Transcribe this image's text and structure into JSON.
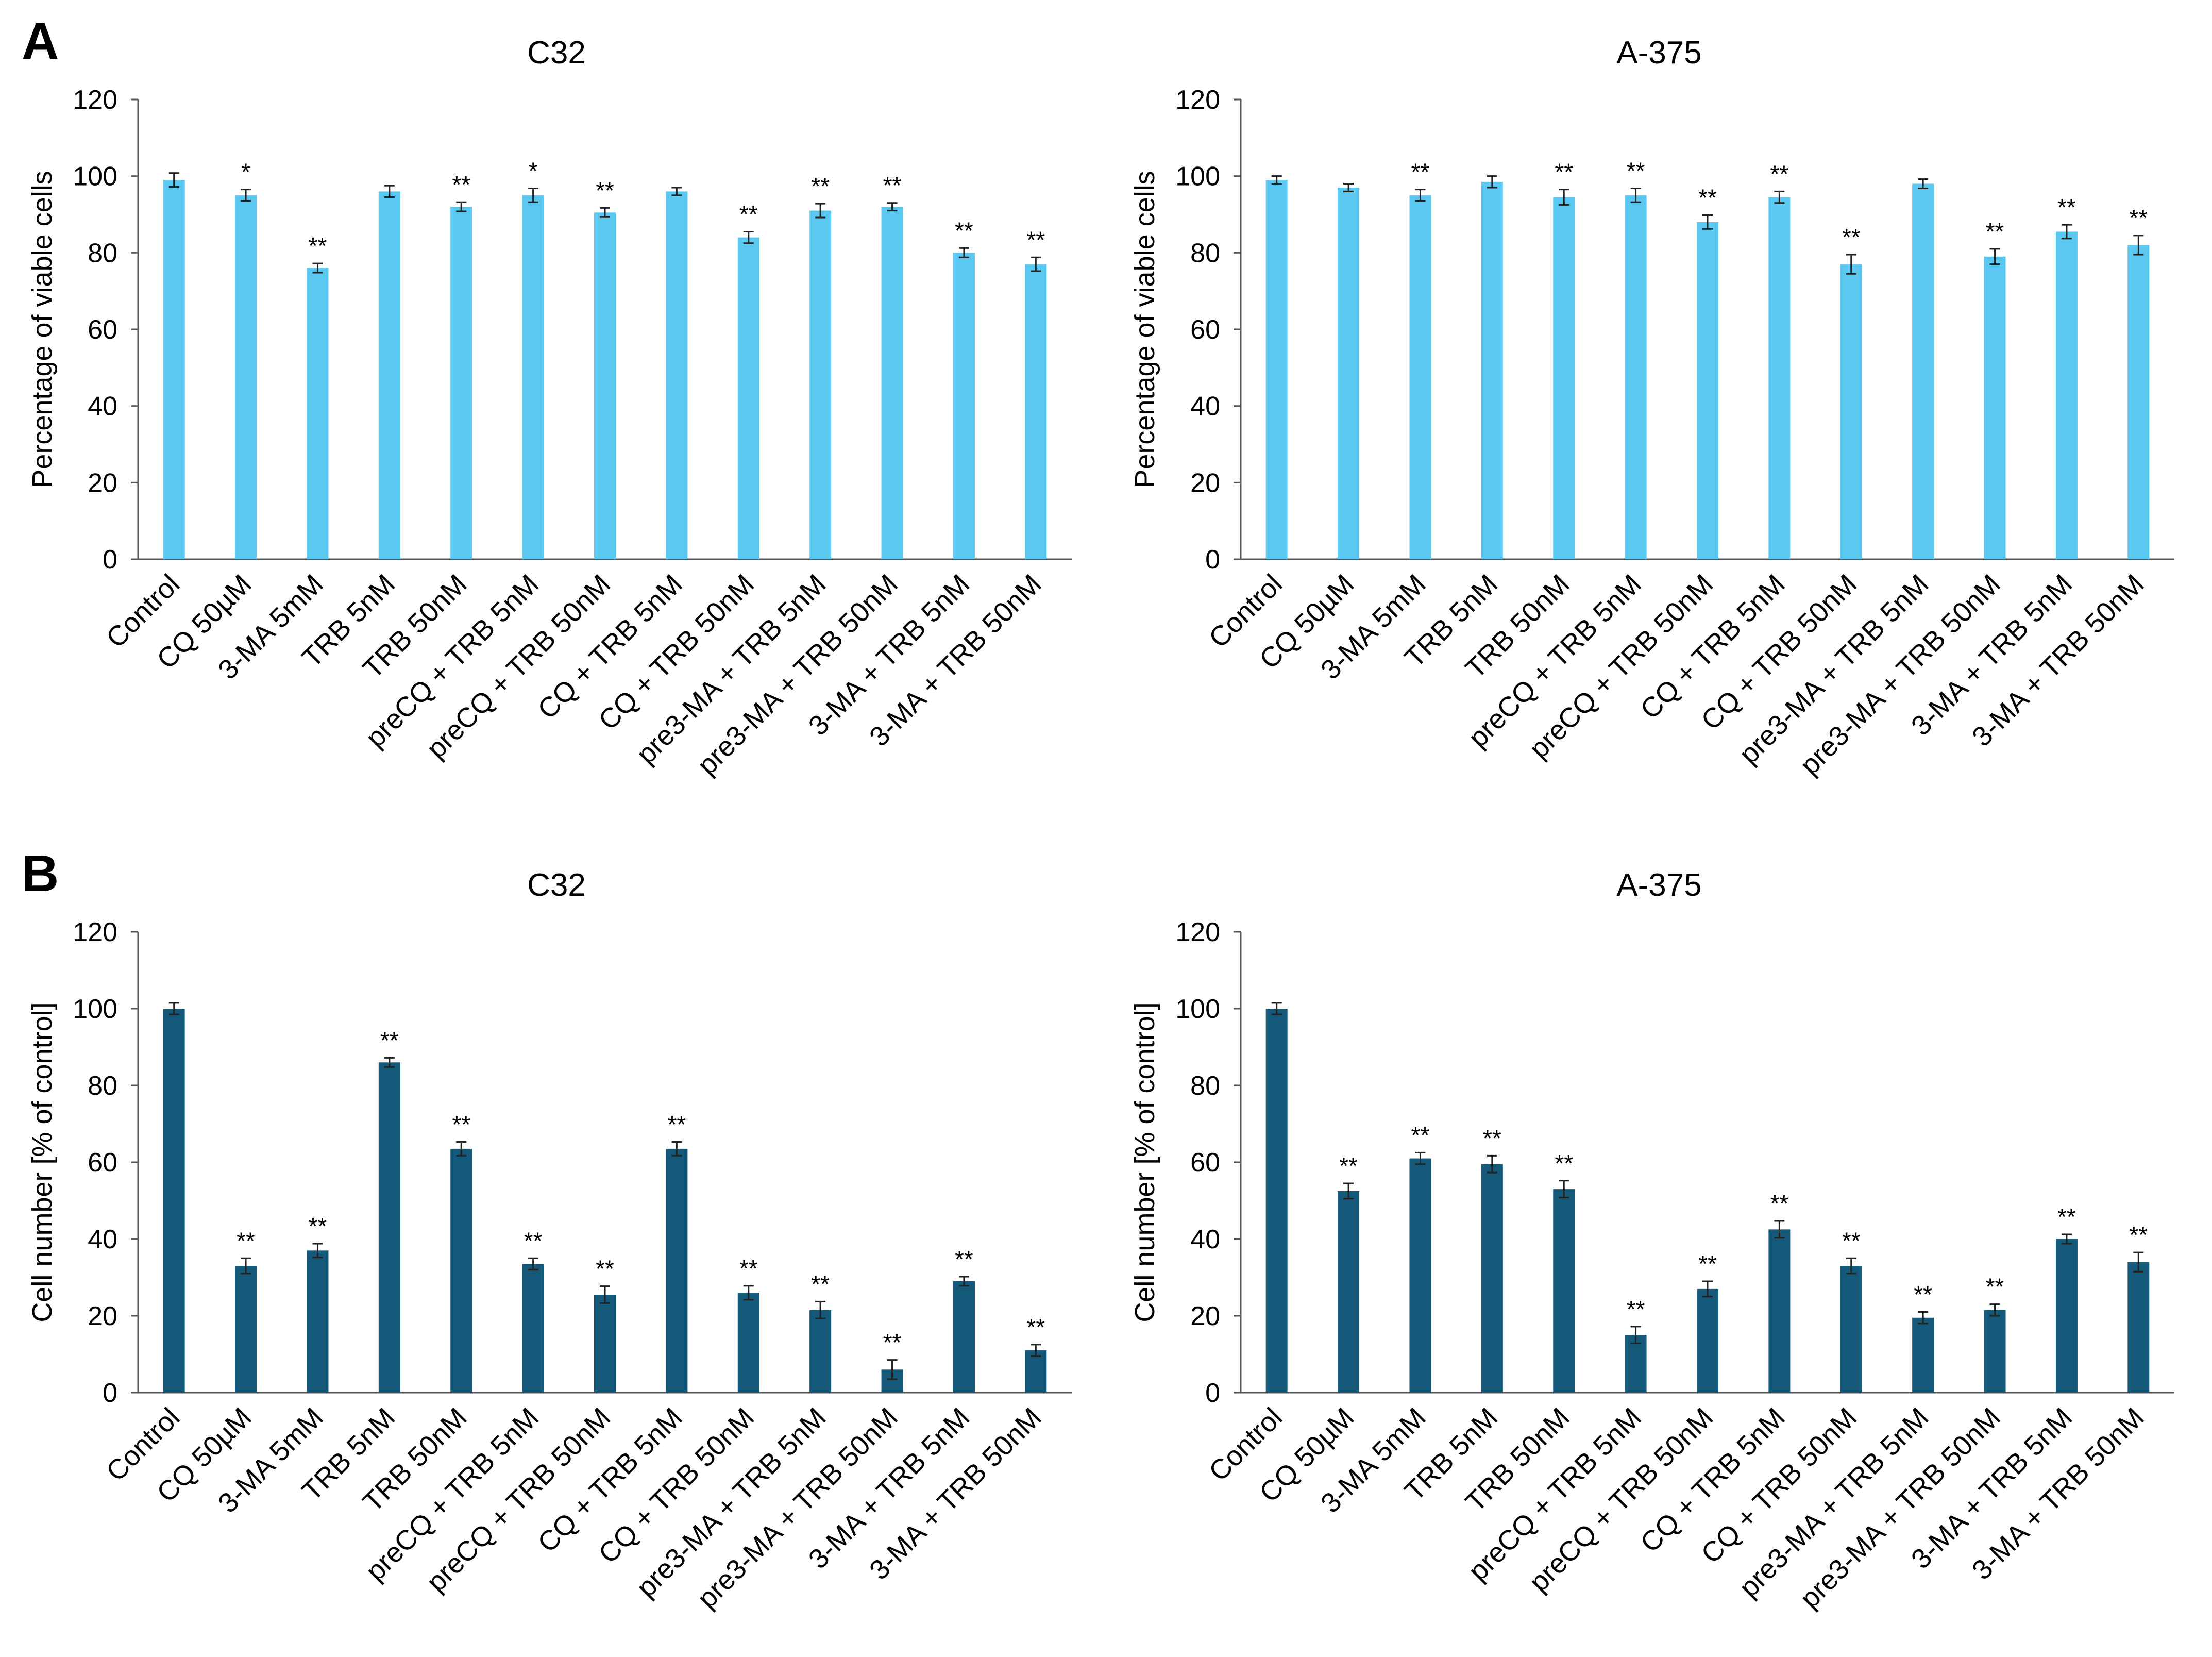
{
  "panels": [
    {
      "letter": "A"
    },
    {
      "letter": "B"
    }
  ],
  "chart_data": [
    {
      "type": "bar",
      "panel": "A",
      "title": "C32",
      "xlabel": "",
      "ylabel": "Percentage of viable cells",
      "ylim": [
        0,
        120
      ],
      "yticks": [
        0,
        20,
        40,
        60,
        80,
        100,
        120
      ],
      "color": "#5bc8f2",
      "categories": [
        "Control",
        "CQ 50µM",
        "3-MA 5mM",
        "TRB 5nM",
        "TRB 50nM",
        "preCQ + TRB 5nM",
        "preCQ + TRB 50nM",
        "CQ + TRB 5nM",
        "CQ + TRB 50nM",
        "pre3-MA + TRB 5nM",
        "pre3-MA + TRB 50nM",
        "3-MA + TRB 5nM",
        "3-MA + TRB 50nM"
      ],
      "values": [
        99,
        95,
        76,
        96,
        92,
        95,
        90.5,
        96,
        84,
        91,
        92,
        80,
        77
      ],
      "errors": [
        1.8,
        1.5,
        1.2,
        1.5,
        1.2,
        1.8,
        1.2,
        1.0,
        1.5,
        1.8,
        1.0,
        1.2,
        1.8
      ],
      "significance": [
        "",
        "*",
        "**",
        "",
        "**",
        "*",
        "**",
        "",
        "**",
        "**",
        "**",
        "**",
        "**"
      ]
    },
    {
      "type": "bar",
      "panel": "A",
      "title": "A-375",
      "xlabel": "",
      "ylabel": "Percentage of viable cells",
      "ylim": [
        0,
        120
      ],
      "yticks": [
        0,
        20,
        40,
        60,
        80,
        100,
        120
      ],
      "color": "#5bc8f2",
      "categories": [
        "Control",
        "CQ 50µM",
        "3-MA 5mM",
        "TRB 5nM",
        "TRB 50nM",
        "preCQ + TRB 5nM",
        "preCQ + TRB 50nM",
        "CQ + TRB 5nM",
        "CQ + TRB 50nM",
        "pre3-MA + TRB 5nM",
        "pre3-MA + TRB 50nM",
        "3-MA + TRB 5nM",
        "3-MA + TRB 50nM"
      ],
      "values": [
        99,
        97,
        95,
        98.5,
        94.5,
        95,
        88,
        94.5,
        77,
        98,
        79,
        85.5,
        82
      ],
      "errors": [
        1.0,
        1.0,
        1.5,
        1.5,
        2.0,
        1.8,
        1.8,
        1.5,
        2.5,
        1.2,
        2.0,
        1.8,
        2.5
      ],
      "significance": [
        "",
        "",
        "**",
        "",
        "**",
        "**",
        "**",
        "**",
        "**",
        "",
        "**",
        "**",
        "**"
      ]
    },
    {
      "type": "bar",
      "panel": "B",
      "title": "C32",
      "xlabel": "",
      "ylabel": "Cell number [% of control]",
      "ylim": [
        0,
        120
      ],
      "yticks": [
        0,
        20,
        40,
        60,
        80,
        100,
        120
      ],
      "color": "#14587a",
      "categories": [
        "Control",
        "CQ 50µM",
        "3-MA 5mM",
        "TRB 5nM",
        "TRB 50nM",
        "preCQ + TRB 5nM",
        "preCQ + TRB 50nM",
        "CQ + TRB 5nM",
        "CQ + TRB 50nM",
        "pre3-MA + TRB 5nM",
        "pre3-MA + TRB 50nM",
        "3-MA + TRB 5nM",
        "3-MA + TRB 50nM"
      ],
      "values": [
        100,
        33,
        37,
        86,
        63.5,
        33.5,
        25.5,
        63.5,
        26,
        21.5,
        6,
        29,
        11
      ],
      "errors": [
        1.5,
        2.0,
        1.8,
        1.2,
        1.8,
        1.5,
        2.2,
        1.8,
        1.8,
        2.2,
        2.5,
        1.2,
        1.5
      ],
      "significance": [
        "",
        "**",
        "**",
        "**",
        "**",
        "**",
        "**",
        "**",
        "**",
        "**",
        "**",
        "**",
        "**"
      ]
    },
    {
      "type": "bar",
      "panel": "B",
      "title": "A-375",
      "xlabel": "",
      "ylabel": "Cell number [% of control]",
      "ylim": [
        0,
        120
      ],
      "yticks": [
        0,
        20,
        40,
        60,
        80,
        100,
        120
      ],
      "color": "#14587a",
      "categories": [
        "Control",
        "CQ 50µM",
        "3-MA 5mM",
        "TRB 5nM",
        "TRB 50nM",
        "preCQ + TRB 5nM",
        "preCQ + TRB 50nM",
        "CQ + TRB 5nM",
        "CQ + TRB 50nM",
        "pre3-MA + TRB 5nM",
        "pre3-MA + TRB 50nM",
        "3-MA + TRB 5nM",
        "3-MA + TRB 50nM"
      ],
      "values": [
        100,
        52.5,
        61,
        59.5,
        53,
        15,
        27,
        42.5,
        33,
        19.5,
        21.5,
        40,
        34
      ],
      "errors": [
        1.5,
        2.0,
        1.5,
        2.2,
        2.2,
        2.2,
        2.0,
        2.2,
        2.0,
        1.5,
        1.5,
        1.2,
        2.5
      ],
      "significance": [
        "",
        "**",
        "**",
        "**",
        "**",
        "**",
        "**",
        "**",
        "**",
        "**",
        "**",
        "**",
        "**"
      ]
    }
  ]
}
